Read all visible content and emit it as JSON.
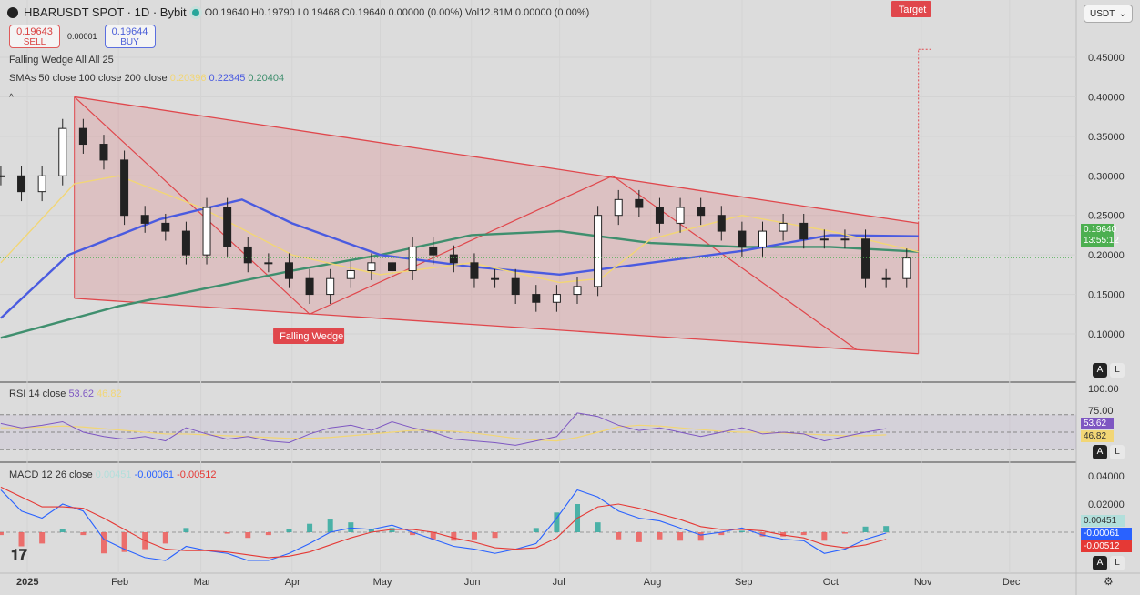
{
  "header": {
    "symbol": "HBARUSDT SPOT · 1D · Bybit",
    "ohlc": "O0.19640 H0.19790 L0.19468 C0.19640 0.00000 (0.00%) Vol12.81M 0.00000 (0.00%)"
  },
  "trade": {
    "sell_price": "0.19643",
    "sell_label": "SELL",
    "spread": "0.00001",
    "buy_price": "0.19644",
    "buy_label": "BUY"
  },
  "indicators": {
    "wedge": "Falling Wedge All All 25",
    "sma_label": "SMAs 50 close 100 close 200 close",
    "sma50": "0.20396",
    "sma100": "0.22345",
    "sma200": "0.20404",
    "rsi_label": "RSI 14 close",
    "rsi": "53.62",
    "rsi_ma": "46.82",
    "macd_label": "MACD 12 26 close",
    "macd_hist": "0.00451",
    "macd": "-0.00061",
    "macd_signal": "-0.00512"
  },
  "currency": "USDT",
  "colors": {
    "up": "#26a69a",
    "down": "#222222",
    "sma50": "#f2d675",
    "sma100": "#4a5be0",
    "sma200": "#3f8f6e",
    "wedge": "#e0474c",
    "rsi": "#7e57c2",
    "macd": "#2962ff",
    "signal": "#e53935"
  },
  "chart_data": {
    "type": "candlestick",
    "price_axis": {
      "ticks": [
        "0.45000",
        "0.40000",
        "0.35000",
        "0.30000",
        "0.25000",
        "0.20000",
        "0.15000",
        "0.10000"
      ],
      "range": [
        0.065,
        0.49
      ]
    },
    "time_axis": {
      "ticks": [
        "2025",
        "Feb",
        "Mar",
        "Apr",
        "May",
        "Jun",
        "Jul",
        "Aug",
        "Sep",
        "Oct",
        "Nov",
        "Dec"
      ]
    },
    "last_price": "0.19640",
    "countdown": "13:55:12",
    "closes": [
      [
        "2024-12-23",
        0.3
      ],
      [
        "2024-12-30",
        0.28
      ],
      [
        "2025-01-06",
        0.3
      ],
      [
        "2025-01-13",
        0.36
      ],
      [
        "2025-01-20",
        0.34
      ],
      [
        "2025-01-27",
        0.32
      ],
      [
        "2025-02-03",
        0.25
      ],
      [
        "2025-02-10",
        0.24
      ],
      [
        "2025-02-17",
        0.23
      ],
      [
        "2025-02-24",
        0.2
      ],
      [
        "2025-03-03",
        0.26
      ],
      [
        "2025-03-10",
        0.21
      ],
      [
        "2025-03-17",
        0.19
      ],
      [
        "2025-03-24",
        0.19
      ],
      [
        "2025-03-31",
        0.17
      ],
      [
        "2025-04-07",
        0.15
      ],
      [
        "2025-04-14",
        0.17
      ],
      [
        "2025-04-21",
        0.18
      ],
      [
        "2025-04-28",
        0.19
      ],
      [
        "2025-05-05",
        0.18
      ],
      [
        "2025-05-12",
        0.21
      ],
      [
        "2025-05-19",
        0.2
      ],
      [
        "2025-05-26",
        0.19
      ],
      [
        "2025-06-02",
        0.17
      ],
      [
        "2025-06-09",
        0.17
      ],
      [
        "2025-06-16",
        0.15
      ],
      [
        "2025-06-23",
        0.14
      ],
      [
        "2025-06-30",
        0.15
      ],
      [
        "2025-07-07",
        0.16
      ],
      [
        "2025-07-14",
        0.25
      ],
      [
        "2025-07-21",
        0.27
      ],
      [
        "2025-07-28",
        0.26
      ],
      [
        "2025-08-04",
        0.24
      ],
      [
        "2025-08-11",
        0.26
      ],
      [
        "2025-08-18",
        0.25
      ],
      [
        "2025-08-25",
        0.23
      ],
      [
        "2025-09-01",
        0.21
      ],
      [
        "2025-09-08",
        0.23
      ],
      [
        "2025-09-15",
        0.24
      ],
      [
        "2025-09-22",
        0.22
      ],
      [
        "2025-09-29",
        0.22
      ],
      [
        "2025-10-06",
        0.22
      ],
      [
        "2025-10-13",
        0.17
      ],
      [
        "2025-10-20",
        0.17
      ],
      [
        "2025-10-27",
        0.196
      ]
    ],
    "sma50": [
      [
        "2024-12-23",
        0.19
      ],
      [
        "2025-01-17",
        0.29
      ],
      [
        "2025-02-01",
        0.3
      ],
      [
        "2025-03-01",
        0.26
      ],
      [
        "2025-04-01",
        0.2
      ],
      [
        "2025-05-01",
        0.175
      ],
      [
        "2025-06-01",
        0.19
      ],
      [
        "2025-07-01",
        0.165
      ],
      [
        "2025-07-15",
        0.17
      ],
      [
        "2025-08-01",
        0.22
      ],
      [
        "2025-09-01",
        0.25
      ],
      [
        "2025-10-01",
        0.23
      ],
      [
        "2025-10-31",
        0.204
      ]
    ],
    "sma100": [
      [
        "2024-12-23",
        0.12
      ],
      [
        "2025-01-15",
        0.2
      ],
      [
        "2025-02-15",
        0.245
      ],
      [
        "2025-03-15",
        0.27
      ],
      [
        "2025-04-01",
        0.24
      ],
      [
        "2025-05-01",
        0.2
      ],
      [
        "2025-06-01",
        0.185
      ],
      [
        "2025-07-01",
        0.175
      ],
      [
        "2025-08-01",
        0.19
      ],
      [
        "2025-09-01",
        0.205
      ],
      [
        "2025-10-01",
        0.225
      ],
      [
        "2025-10-31",
        0.2235
      ]
    ],
    "sma200": [
      [
        "2024-12-23",
        0.095
      ],
      [
        "2025-02-01",
        0.135
      ],
      [
        "2025-04-01",
        0.18
      ],
      [
        "2025-05-01",
        0.2
      ],
      [
        "2025-06-01",
        0.225
      ],
      [
        "2025-07-01",
        0.23
      ],
      [
        "2025-08-01",
        0.215
      ],
      [
        "2025-09-01",
        0.21
      ],
      [
        "2025-10-01",
        0.21
      ],
      [
        "2025-10-31",
        0.204
      ]
    ],
    "wedge": {
      "label": "Falling Wedge",
      "upper": [
        [
          "2025-01-17",
          0.4
        ],
        [
          "2025-10-31",
          0.24
        ]
      ],
      "lower": [
        [
          "2025-01-17",
          0.145
        ],
        [
          "2025-10-31",
          0.075
        ]
      ],
      "zigzag": [
        [
          "2025-01-17",
          0.4
        ],
        [
          "2025-04-07",
          0.125
        ],
        [
          "2025-07-19",
          0.3
        ],
        [
          "2025-10-10",
          0.08
        ]
      ],
      "target_label": "Target",
      "target": 0.46
    },
    "rsi": {
      "ticks": [
        "100.00",
        "75.00"
      ],
      "bands": [
        70,
        50,
        30
      ],
      "values": [
        60,
        55,
        58,
        62,
        50,
        45,
        42,
        45,
        40,
        55,
        48,
        42,
        45,
        40,
        38,
        48,
        55,
        58,
        52,
        62,
        55,
        50,
        42,
        40,
        38,
        35,
        40,
        45,
        72,
        68,
        58,
        52,
        55,
        50,
        45,
        50,
        55,
        48,
        50,
        48,
        40,
        45,
        50,
        54
      ],
      "ma": [
        55,
        55,
        56,
        57,
        56,
        54,
        52,
        50,
        48,
        48,
        47,
        46,
        45,
        44,
        43,
        43,
        44,
        46,
        48,
        50,
        52,
        52,
        51,
        49,
        46,
        43,
        41,
        40,
        44,
        50,
        56,
        58,
        57,
        55,
        53,
        51,
        50,
        50,
        49,
        48,
        47,
        46,
        46,
        47
      ]
    },
    "macd": {
      "ticks": [
        "0.04000",
        "0.02000"
      ],
      "line": [
        0.03,
        0.015,
        0.01,
        0.02,
        0.015,
        -0.005,
        -0.012,
        -0.018,
        -0.02,
        -0.01,
        -0.013,
        -0.015,
        -0.02,
        -0.02,
        -0.015,
        -0.008,
        0,
        0.003,
        0.002,
        0.005,
        0,
        -0.005,
        -0.01,
        -0.012,
        -0.015,
        -0.012,
        -0.008,
        0.01,
        0.03,
        0.025,
        0.015,
        0.01,
        0.008,
        0.003,
        -0.002,
        0,
        0.003,
        -0.002,
        -0.005,
        -0.006,
        -0.015,
        -0.012,
        -0.005,
        -0.0006
      ],
      "signal": [
        0.032,
        0.025,
        0.018,
        0.018,
        0.017,
        0.01,
        0.002,
        -0.006,
        -0.012,
        -0.013,
        -0.013,
        -0.014,
        -0.016,
        -0.018,
        -0.017,
        -0.014,
        -0.009,
        -0.004,
        0,
        0.002,
        0.002,
        0,
        -0.004,
        -0.007,
        -0.011,
        -0.012,
        -0.011,
        -0.004,
        0.01,
        0.018,
        0.02,
        0.017,
        0.013,
        0.009,
        0.004,
        0.002,
        0.002,
        0.001,
        -0.002,
        -0.004,
        -0.009,
        -0.011,
        -0.009,
        -0.005
      ]
    }
  }
}
